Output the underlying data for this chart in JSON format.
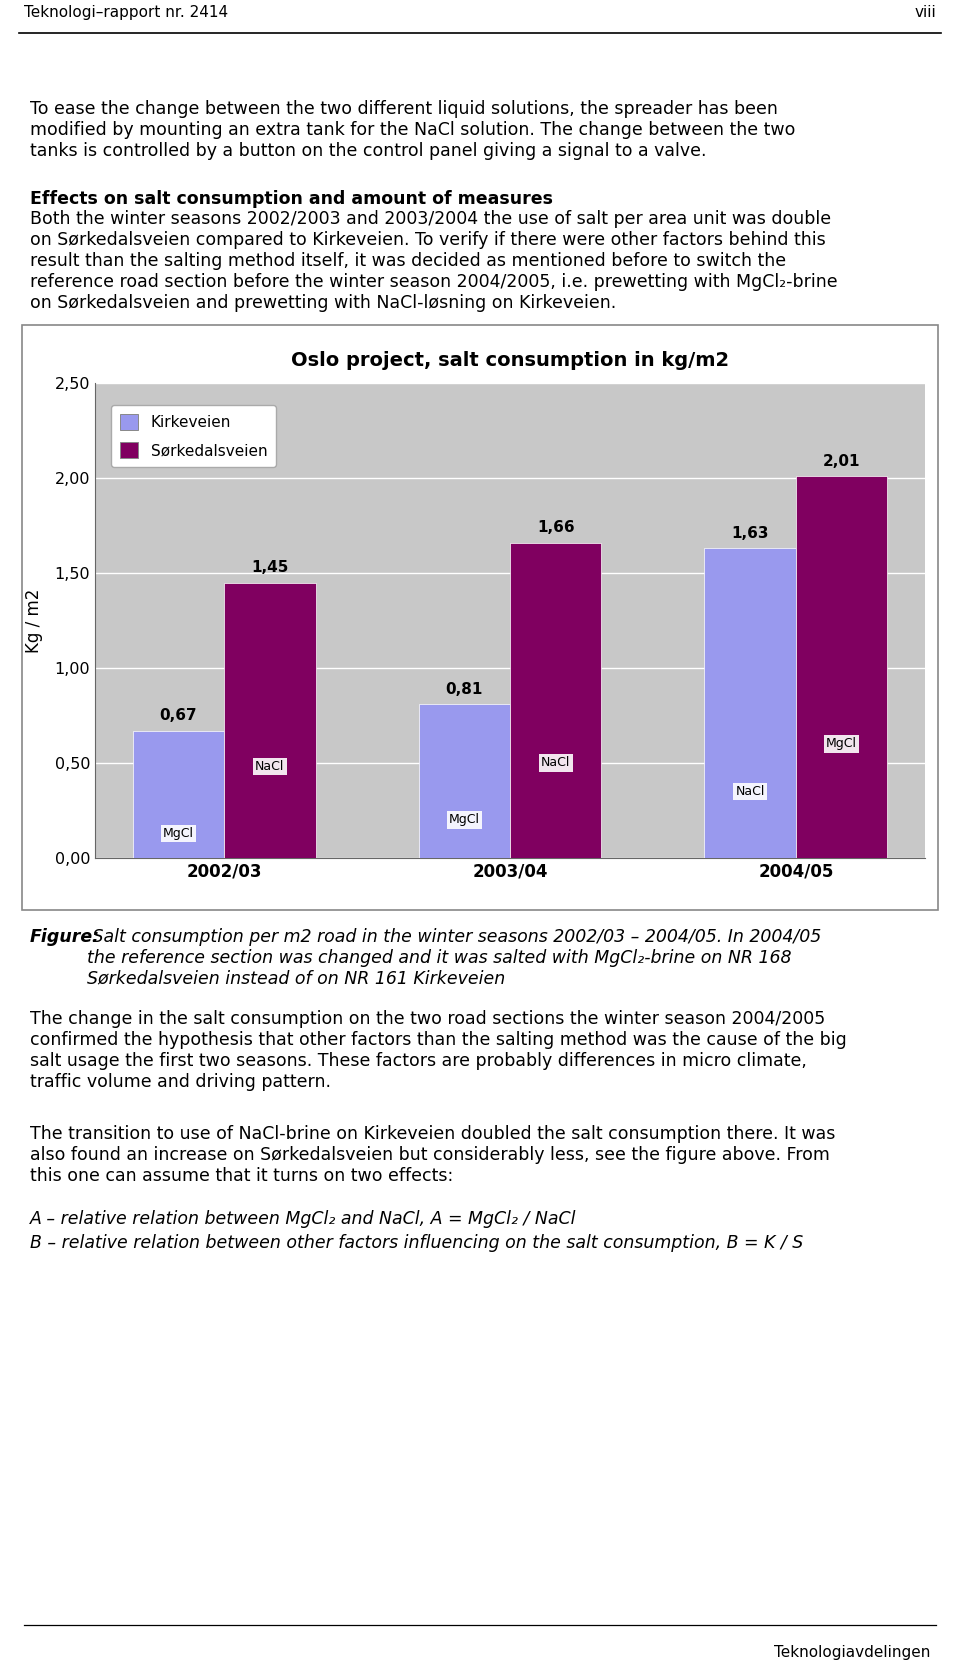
{
  "title": "Oslo project, salt consumption in kg/m2",
  "ylabel": "Kg / m2",
  "categories": [
    "2002/03",
    "2003/04",
    "2004/05"
  ],
  "kirkeveien_values": [
    0.67,
    0.81,
    1.63
  ],
  "sorkedalsveien_values": [
    1.45,
    1.66,
    2.01
  ],
  "kirkeveien_labels": [
    "MgCl",
    "MgCl",
    "NaCl"
  ],
  "sorkedalsveien_labels": [
    "NaCl",
    "NaCl",
    "MgCl"
  ],
  "kirkeveien_color": "#9999EE",
  "sorkedalsveien_color": "#800060",
  "ylim": [
    0.0,
    2.5
  ],
  "yticks": [
    0.0,
    0.5,
    1.0,
    1.5,
    2.0,
    2.5
  ],
  "ytick_labels": [
    "0,00",
    "0,50",
    "1,00",
    "1,50",
    "2,00",
    "2,50"
  ],
  "bar_width": 0.32,
  "chart_bg": "#C8C8C8",
  "figure_bg": "#FFFFFF",
  "header_text": "Teknologi–rapport nr. 2414",
  "header_right": "viii",
  "para1": "To ease the change between the two different liquid solutions, the spreader has been\nmodified by mounting an extra tank for the NaCl solution. The change between the two\ntanks is controlled by a button on the control panel giving a signal to a valve.",
  "section_title": "Effects on salt consumption and amount of measures",
  "para2": "Both the winter seasons 2002/2003 and 2003/2004 the use of salt per area unit was double\non Sørkedalsveien compared to Kirkeveien. To verify if there were other factors behind this\nresult than the salting method itself, it was decided as mentioned before to switch the\nreference road section before the winter season 2004/2005, i.e. prewetting with MgCl₂-brine\non Sørkedalsveien and prewetting with NaCl-løsning on Kirkeveien.",
  "figure_label_bold": "Figure:",
  "figure_caption_italic": " Salt consumption per m",
  "figure_caption_sup": "2",
  "figure_caption_rest": " road in the winter seasons 2002/03 – 2004/05. In 2004/05\nthe reference section was changed and it was salted with MgCl₂-brine on NR 168\nSørkedalsveien instead of on NR 161 Kirkeveien",
  "para3": "The change in the salt consumption on the two road sections the winter season 2004/2005\nconfirmed the hypothesis that other factors than the salting method was the cause of the big\nsalt usage the first two seasons. These factors are probably differences in micro climate,\ntraffic volume and driving pattern.",
  "para4": "The transition to use of NaCl-brine on Kirkeveien doubled the salt consumption there. It was\nalso found an increase on Sørkedalsveien but considerably less, see the figure above. From\nthis one can assume that it turns on two effects:",
  "para5a": "A – relative relation between MgCl₂ and NaCl, A = MgCl₂ / NaCl",
  "para5b": "B – relative relation between other factors influencing on the salt consumption, B = K / S",
  "footer_right": "Teknologiavdelingen",
  "chart_outer_box": true,
  "chart_outer_color": "#AAAAAA"
}
